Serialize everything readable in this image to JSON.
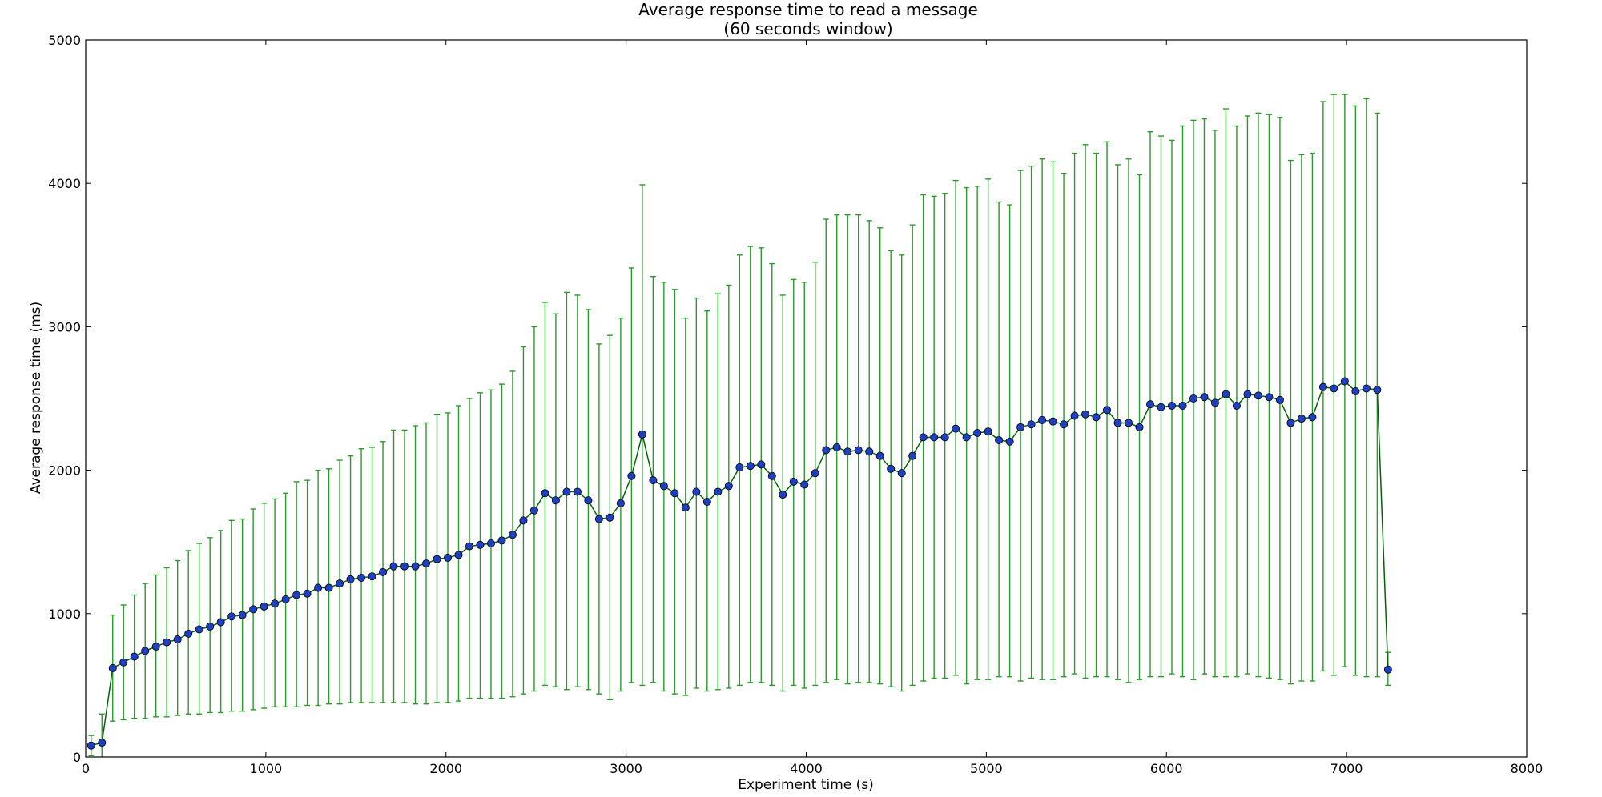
{
  "chart_data": {
    "type": "line",
    "title": "Average response time to read a message",
    "subtitle": "(60 seconds window)",
    "xlabel": "Experiment time (s)",
    "ylabel": "Average response time (ms)",
    "xlim": [
      0,
      8000
    ],
    "ylim": [
      0,
      5000
    ],
    "xticks": [
      0,
      1000,
      2000,
      3000,
      4000,
      5000,
      6000,
      7000,
      8000
    ],
    "yticks": [
      0,
      1000,
      2000,
      3000,
      4000,
      5000
    ],
    "grid": false,
    "legend": "none",
    "colors": {
      "line": "#006400",
      "marker_fill": "#1e3fbf",
      "marker_edge": "#000000",
      "error_bar": "#2a9a2a",
      "axes": "#000000"
    },
    "series": [
      {
        "error_bars": true,
        "x": [
          30,
          90,
          150,
          210,
          270,
          330,
          390,
          450,
          510,
          570,
          630,
          690,
          750,
          810,
          870,
          930,
          990,
          1050,
          1110,
          1170,
          1230,
          1290,
          1350,
          1410,
          1470,
          1530,
          1590,
          1650,
          1710,
          1770,
          1830,
          1890,
          1950,
          2010,
          2070,
          2130,
          2190,
          2250,
          2310,
          2370,
          2430,
          2490,
          2550,
          2610,
          2670,
          2730,
          2790,
          2850,
          2910,
          2970,
          3030,
          3090,
          3150,
          3210,
          3270,
          3330,
          3390,
          3450,
          3510,
          3570,
          3630,
          3690,
          3750,
          3810,
          3870,
          3930,
          3990,
          4050,
          4110,
          4170,
          4230,
          4290,
          4350,
          4410,
          4470,
          4530,
          4590,
          4650,
          4710,
          4770,
          4830,
          4890,
          4950,
          5010,
          5070,
          5130,
          5190,
          5250,
          5310,
          5370,
          5430,
          5490,
          5550,
          5610,
          5670,
          5730,
          5790,
          5850,
          5910,
          5970,
          6030,
          6090,
          6150,
          6210,
          6270,
          6330,
          6390,
          6450,
          6510,
          6570,
          6630,
          6690,
          6750,
          6810,
          6870,
          6930,
          6990,
          7050,
          7110,
          7170,
          7230
        ],
        "y": [
          80,
          100,
          620,
          660,
          700,
          740,
          770,
          800,
          820,
          860,
          890,
          910,
          940,
          980,
          990,
          1030,
          1050,
          1070,
          1100,
          1130,
          1140,
          1180,
          1180,
          1210,
          1240,
          1250,
          1260,
          1290,
          1330,
          1330,
          1330,
          1350,
          1380,
          1390,
          1410,
          1470,
          1480,
          1490,
          1510,
          1550,
          1650,
          1720,
          1840,
          1790,
          1850,
          1850,
          1790,
          1660,
          1670,
          1770,
          1960,
          2250,
          1930,
          1890,
          1840,
          1740,
          1850,
          1780,
          1850,
          1890,
          2020,
          2030,
          2040,
          1960,
          1830,
          1920,
          1900,
          1980,
          2140,
          2160,
          2130,
          2140,
          2130,
          2100,
          2010,
          1980,
          2100,
          2230,
          2230,
          2230,
          2290,
          2230,
          2260,
          2270,
          2210,
          2200,
          2300,
          2320,
          2350,
          2340,
          2320,
          2380,
          2390,
          2370,
          2420,
          2330,
          2330,
          2300,
          2460,
          2440,
          2450,
          2450,
          2500,
          2510,
          2470,
          2530,
          2450,
          2530,
          2520,
          2510,
          2490,
          2330,
          2360,
          2370,
          2580,
          2570,
          2620,
          2550,
          2570,
          2560,
          610
        ],
        "y_low": [
          10,
          -70,
          250,
          260,
          270,
          270,
          280,
          280,
          290,
          300,
          300,
          310,
          310,
          320,
          320,
          330,
          340,
          350,
          350,
          350,
          360,
          360,
          370,
          370,
          380,
          380,
          380,
          380,
          380,
          380,
          370,
          370,
          380,
          380,
          390,
          410,
          410,
          410,
          410,
          420,
          440,
          460,
          500,
          490,
          470,
          490,
          470,
          440,
          400,
          460,
          520,
          500,
          520,
          460,
          440,
          430,
          480,
          460,
          470,
          480,
          500,
          520,
          520,
          500,
          460,
          500,
          480,
          500,
          520,
          540,
          510,
          520,
          520,
          510,
          490,
          460,
          500,
          530,
          550,
          550,
          570,
          510,
          540,
          540,
          560,
          560,
          530,
          550,
          540,
          540,
          560,
          580,
          550,
          560,
          560,
          540,
          520,
          540,
          560,
          560,
          580,
          560,
          540,
          580,
          560,
          560,
          560,
          580,
          560,
          550,
          540,
          510,
          530,
          530,
          600,
          570,
          630,
          570,
          560,
          560,
          500
        ],
        "y_high": [
          150,
          300,
          990,
          1060,
          1130,
          1210,
          1270,
          1320,
          1370,
          1440,
          1490,
          1530,
          1580,
          1650,
          1660,
          1730,
          1770,
          1800,
          1840,
          1920,
          1930,
          2000,
          2010,
          2070,
          2100,
          2150,
          2160,
          2200,
          2280,
          2280,
          2310,
          2330,
          2390,
          2400,
          2450,
          2500,
          2540,
          2560,
          2600,
          2690,
          2860,
          3000,
          3170,
          3090,
          3240,
          3220,
          3120,
          2880,
          2940,
          3060,
          3410,
          3990,
          3350,
          3310,
          3260,
          3060,
          3200,
          3110,
          3230,
          3290,
          3500,
          3560,
          3550,
          3440,
          3220,
          3330,
          3310,
          3450,
          3750,
          3780,
          3780,
          3780,
          3740,
          3690,
          3530,
          3500,
          3710,
          3920,
          3910,
          3930,
          4020,
          3970,
          3980,
          4030,
          3870,
          3850,
          4090,
          4120,
          4170,
          4150,
          4070,
          4210,
          4270,
          4210,
          4290,
          4130,
          4170,
          4060,
          4360,
          4330,
          4300,
          4400,
          4440,
          4450,
          4370,
          4520,
          4400,
          4470,
          4490,
          4480,
          4460,
          4160,
          4200,
          4210,
          4570,
          4620,
          4620,
          4540,
          4590,
          4490,
          730
        ]
      }
    ]
  }
}
